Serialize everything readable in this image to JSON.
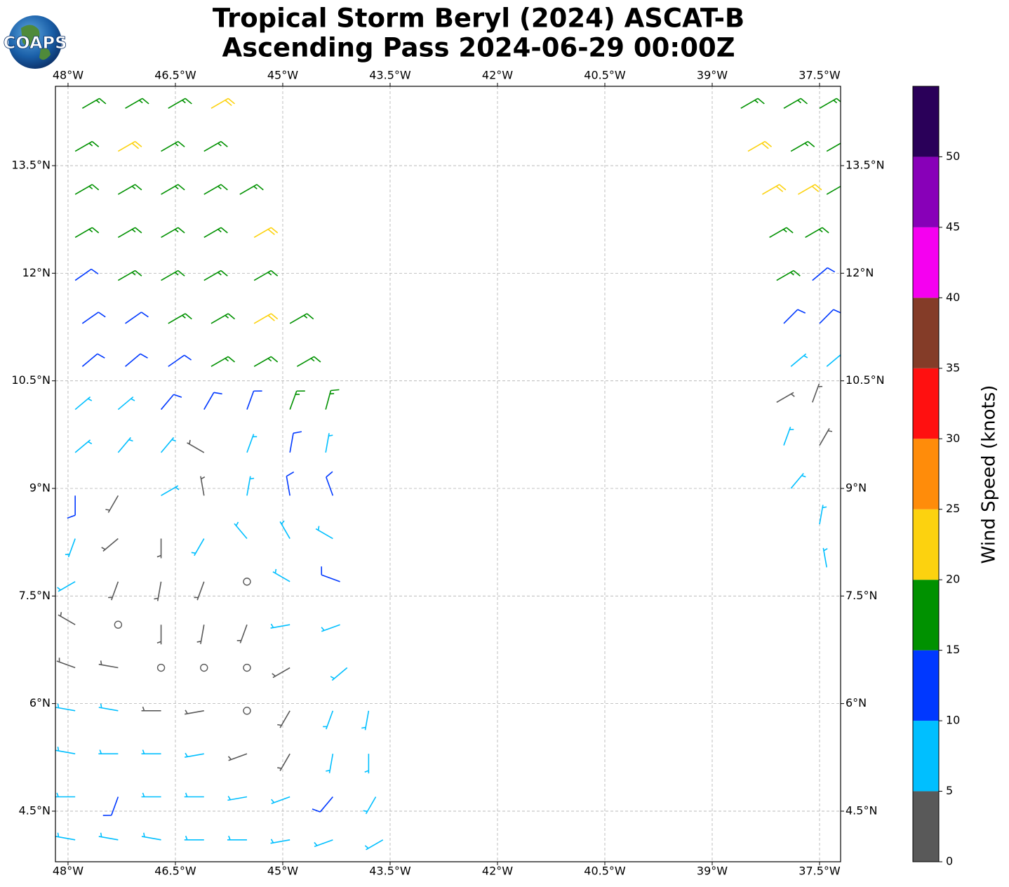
{
  "chart_data": {
    "type": "barbs",
    "title": [
      "Tropical Storm Beryl (2024) ASCAT-B",
      "Ascending Pass 2024-06-29 00:00Z"
    ],
    "logo": "COAPS",
    "xlim": [
      -48.176,
      -37.206
    ],
    "ylim": [
      3.795,
      14.606
    ],
    "xticks": [
      {
        "value": -48,
        "label": "48°W"
      },
      {
        "value": -46.5,
        "label": "46.5°W"
      },
      {
        "value": -45,
        "label": "45°W"
      },
      {
        "value": -43.5,
        "label": "43.5°W"
      },
      {
        "value": -42,
        "label": "42°W"
      },
      {
        "value": -40.5,
        "label": "40.5°W"
      },
      {
        "value": -39,
        "label": "39°W"
      },
      {
        "value": -37.5,
        "label": "37.5°W"
      }
    ],
    "yticks": [
      {
        "value": 4.5,
        "label": "4.5°N"
      },
      {
        "value": 6,
        "label": "6°N"
      },
      {
        "value": 7.5,
        "label": "7.5°N"
      },
      {
        "value": 9,
        "label": "9°N"
      },
      {
        "value": 10.5,
        "label": "10.5°N"
      },
      {
        "value": 12,
        "label": "12°N"
      },
      {
        "value": 13.5,
        "label": "13.5°N"
      }
    ],
    "grid": true,
    "colorbar": {
      "label": "Wind Speed (knots)",
      "lim": [
        0,
        55
      ],
      "ticks": [
        0,
        5,
        10,
        15,
        20,
        25,
        30,
        35,
        40,
        45,
        50
      ],
      "colors": [
        "#595959",
        "#00bfff",
        "#0038ff",
        "#009100",
        "#fcd20f",
        "#ff8c0a",
        "#ff1010",
        "#843c28",
        "#f500f0",
        "#8800b8",
        "#2a0059"
      ]
    },
    "barbs": [
      [
        -47.8,
        14.3,
        17,
        60
      ],
      [
        -47.2,
        14.3,
        17,
        60
      ],
      [
        -46.6,
        14.3,
        17,
        60
      ],
      [
        -46.0,
        14.3,
        22,
        60
      ],
      [
        -47.9,
        13.7,
        17,
        60
      ],
      [
        -47.3,
        13.7,
        22,
        60
      ],
      [
        -46.7,
        13.7,
        17,
        60
      ],
      [
        -46.1,
        13.7,
        17,
        60
      ],
      [
        -47.9,
        13.1,
        17,
        60
      ],
      [
        -47.3,
        13.1,
        17,
        60
      ],
      [
        -46.7,
        13.1,
        17,
        60
      ],
      [
        -46.1,
        13.1,
        17,
        60
      ],
      [
        -45.6,
        13.1,
        17,
        60
      ],
      [
        -47.9,
        12.5,
        17,
        60
      ],
      [
        -47.3,
        12.5,
        17,
        60
      ],
      [
        -46.7,
        12.5,
        17,
        60
      ],
      [
        -46.1,
        12.5,
        17,
        60
      ],
      [
        -45.4,
        12.5,
        22,
        60
      ],
      [
        -47.9,
        11.9,
        12,
        55
      ],
      [
        -47.3,
        11.9,
        17,
        60
      ],
      [
        -46.7,
        11.9,
        17,
        60
      ],
      [
        -46.1,
        11.9,
        17,
        60
      ],
      [
        -45.4,
        11.9,
        17,
        60
      ],
      [
        -47.8,
        11.3,
        12,
        55
      ],
      [
        -47.2,
        11.3,
        12,
        55
      ],
      [
        -46.6,
        11.3,
        17,
        60
      ],
      [
        -46.0,
        11.3,
        17,
        60
      ],
      [
        -45.4,
        11.3,
        22,
        60
      ],
      [
        -44.9,
        11.3,
        17,
        60
      ],
      [
        -47.8,
        10.7,
        12,
        50
      ],
      [
        -47.2,
        10.7,
        12,
        50
      ],
      [
        -46.6,
        10.7,
        12,
        55
      ],
      [
        -46.0,
        10.7,
        17,
        60
      ],
      [
        -45.4,
        10.7,
        17,
        60
      ],
      [
        -44.8,
        10.7,
        17,
        60
      ],
      [
        -47.9,
        10.1,
        7,
        50
      ],
      [
        -47.3,
        10.1,
        7,
        50
      ],
      [
        -46.7,
        10.1,
        12,
        40
      ],
      [
        -46.1,
        10.1,
        12,
        30
      ],
      [
        -45.5,
        10.1,
        12,
        20
      ],
      [
        -44.9,
        10.1,
        17,
        20
      ],
      [
        -44.4,
        10.1,
        17,
        15
      ],
      [
        -47.9,
        9.5,
        7,
        50
      ],
      [
        -47.3,
        9.5,
        7,
        40
      ],
      [
        -46.7,
        9.5,
        7,
        40
      ],
      [
        -46.1,
        9.5,
        3,
        300
      ],
      [
        -45.5,
        9.5,
        7,
        20
      ],
      [
        -44.9,
        9.5,
        12,
        10
      ],
      [
        -44.4,
        9.5,
        7,
        10
      ],
      [
        -47.9,
        8.9,
        12,
        180
      ],
      [
        -47.3,
        8.9,
        3,
        210
      ],
      [
        -46.7,
        8.9,
        7,
        60
      ],
      [
        -46.1,
        8.9,
        3,
        350
      ],
      [
        -45.5,
        8.9,
        7,
        10
      ],
      [
        -44.9,
        8.9,
        12,
        350
      ],
      [
        -44.3,
        8.9,
        12,
        340
      ],
      [
        -47.9,
        8.3,
        7,
        200
      ],
      [
        -47.3,
        8.3,
        3,
        230
      ],
      [
        -46.7,
        8.3,
        3,
        180
      ],
      [
        -46.1,
        8.3,
        7,
        210
      ],
      [
        -45.5,
        8.3,
        7,
        320
      ],
      [
        -44.9,
        8.3,
        7,
        330
      ],
      [
        -44.3,
        8.3,
        7,
        300
      ],
      [
        -47.9,
        7.7,
        7,
        240
      ],
      [
        -47.3,
        7.7,
        3,
        200
      ],
      [
        -46.7,
        7.7,
        3,
        190
      ],
      [
        -46.1,
        7.7,
        3,
        200
      ],
      [
        -45.5,
        7.7,
        1,
        0
      ],
      [
        -44.9,
        7.7,
        7,
        300
      ],
      [
        -44.2,
        7.7,
        12,
        290
      ],
      [
        -47.9,
        7.1,
        3,
        300
      ],
      [
        -47.3,
        7.1,
        1,
        0
      ],
      [
        -46.7,
        7.1,
        3,
        180
      ],
      [
        -46.1,
        7.1,
        3,
        190
      ],
      [
        -45.5,
        7.1,
        3,
        200
      ],
      [
        -44.9,
        7.1,
        7,
        260
      ],
      [
        -44.2,
        7.1,
        7,
        250
      ],
      [
        -47.9,
        6.5,
        3,
        290
      ],
      [
        -47.3,
        6.5,
        3,
        280
      ],
      [
        -46.7,
        6.5,
        1,
        0
      ],
      [
        -46.1,
        6.5,
        1,
        0
      ],
      [
        -45.5,
        6.5,
        1,
        0
      ],
      [
        -44.9,
        6.5,
        3,
        240
      ],
      [
        -44.1,
        6.5,
        7,
        230
      ],
      [
        -47.9,
        5.9,
        7,
        280
      ],
      [
        -47.3,
        5.9,
        7,
        280
      ],
      [
        -46.7,
        5.9,
        3,
        270
      ],
      [
        -46.1,
        5.9,
        3,
        260
      ],
      [
        -45.5,
        5.9,
        1,
        0
      ],
      [
        -44.9,
        5.9,
        3,
        210
      ],
      [
        -44.3,
        5.9,
        7,
        200
      ],
      [
        -43.8,
        5.9,
        7,
        190
      ],
      [
        -47.9,
        5.3,
        7,
        280
      ],
      [
        -47.3,
        5.3,
        7,
        270
      ],
      [
        -46.7,
        5.3,
        7,
        270
      ],
      [
        -46.1,
        5.3,
        7,
        260
      ],
      [
        -45.5,
        5.3,
        3,
        250
      ],
      [
        -44.9,
        5.3,
        3,
        210
      ],
      [
        -44.3,
        5.3,
        7,
        190
      ],
      [
        -43.8,
        5.3,
        7,
        180
      ],
      [
        -47.9,
        4.7,
        7,
        270
      ],
      [
        -47.3,
        4.7,
        12,
        200
      ],
      [
        -46.7,
        4.7,
        7,
        270
      ],
      [
        -46.1,
        4.7,
        7,
        270
      ],
      [
        -45.5,
        4.7,
        7,
        260
      ],
      [
        -44.9,
        4.7,
        7,
        250
      ],
      [
        -44.3,
        4.7,
        12,
        220
      ],
      [
        -43.7,
        4.7,
        7,
        210
      ],
      [
        -47.9,
        4.1,
        7,
        280
      ],
      [
        -47.3,
        4.1,
        7,
        280
      ],
      [
        -46.7,
        4.1,
        7,
        280
      ],
      [
        -46.1,
        4.1,
        7,
        270
      ],
      [
        -45.5,
        4.1,
        7,
        270
      ],
      [
        -44.9,
        4.1,
        7,
        260
      ],
      [
        -44.3,
        4.1,
        7,
        250
      ],
      [
        -43.6,
        4.1,
        7,
        240
      ],
      [
        -38.6,
        14.3,
        17,
        60
      ],
      [
        -38.0,
        14.3,
        17,
        60
      ],
      [
        -37.5,
        14.3,
        17,
        60
      ],
      [
        -38.5,
        13.7,
        22,
        60
      ],
      [
        -37.9,
        13.7,
        17,
        60
      ],
      [
        -37.4,
        13.7,
        17,
        60
      ],
      [
        -38.3,
        13.1,
        22,
        60
      ],
      [
        -37.8,
        13.1,
        22,
        60
      ],
      [
        -37.4,
        13.1,
        17,
        60
      ],
      [
        -38.2,
        12.5,
        17,
        60
      ],
      [
        -37.7,
        12.5,
        17,
        60
      ],
      [
        -38.1,
        11.9,
        17,
        60
      ],
      [
        -37.6,
        11.9,
        12,
        50
      ],
      [
        -38.0,
        11.3,
        12,
        45
      ],
      [
        -37.5,
        11.3,
        12,
        45
      ],
      [
        -37.9,
        10.7,
        7,
        50
      ],
      [
        -37.4,
        10.7,
        7,
        50
      ],
      [
        -38.1,
        10.2,
        3,
        60
      ],
      [
        -37.6,
        10.2,
        3,
        20
      ],
      [
        -38.0,
        9.6,
        7,
        20
      ],
      [
        -37.5,
        9.6,
        3,
        30
      ],
      [
        -37.9,
        9.0,
        7,
        40
      ],
      [
        -37.5,
        8.5,
        7,
        10
      ],
      [
        -37.4,
        7.9,
        7,
        350
      ]
    ]
  }
}
